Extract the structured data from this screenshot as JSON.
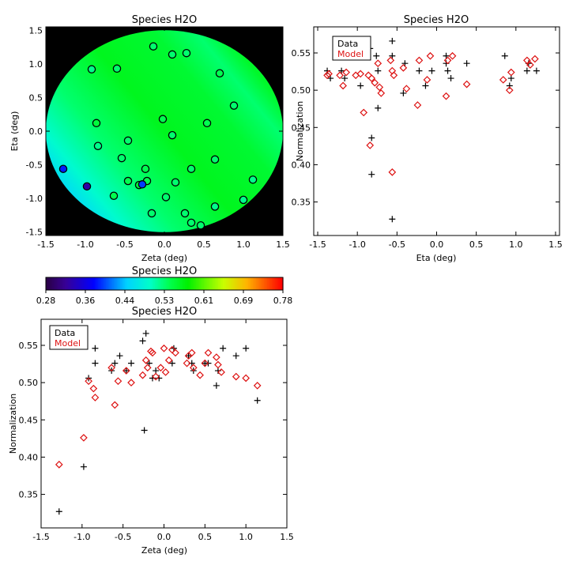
{
  "chart_data": [
    {
      "type": "map",
      "title": "Species H2O",
      "xlabel": "Zeta (deg)",
      "ylabel": "Eta (deg)",
      "xlim": [
        -1.5,
        1.5
      ],
      "ylim": [
        -1.55,
        1.55
      ],
      "xticks": [
        "-1.5",
        "-1.0",
        "-0.5",
        "0.0",
        "0.5",
        "1.0",
        "1.5"
      ],
      "yticks": [
        "-1.5",
        "-1.0",
        "-0.5",
        "0.0",
        "0.5",
        "1.0",
        "1.5"
      ],
      "colormap_range": [
        0.28,
        0.78
      ],
      "points": [
        {
          "x": -0.14,
          "y": 1.26,
          "v": 0.53
        },
        {
          "x": 0.1,
          "y": 1.14,
          "v": 0.53
        },
        {
          "x": 0.28,
          "y": 1.16,
          "v": 0.53
        },
        {
          "x": -0.92,
          "y": 0.92,
          "v": 0.52
        },
        {
          "x": -0.6,
          "y": 0.93,
          "v": 0.53
        },
        {
          "x": 0.7,
          "y": 0.86,
          "v": 0.54
        },
        {
          "x": 0.88,
          "y": 0.38,
          "v": 0.53
        },
        {
          "x": -0.02,
          "y": 0.18,
          "v": 0.54
        },
        {
          "x": 0.54,
          "y": 0.12,
          "v": 0.54
        },
        {
          "x": -0.86,
          "y": 0.12,
          "v": 0.55
        },
        {
          "x": 0.1,
          "y": -0.06,
          "v": 0.53
        },
        {
          "x": -0.46,
          "y": -0.14,
          "v": 0.53
        },
        {
          "x": -0.84,
          "y": -0.22,
          "v": 0.52
        },
        {
          "x": -0.54,
          "y": -0.4,
          "v": 0.53
        },
        {
          "x": 0.64,
          "y": -0.42,
          "v": 0.53
        },
        {
          "x": -0.24,
          "y": -0.56,
          "v": 0.54
        },
        {
          "x": 0.34,
          "y": -0.56,
          "v": 0.53
        },
        {
          "x": -1.28,
          "y": -0.56,
          "v": 0.39
        },
        {
          "x": 1.12,
          "y": -0.72,
          "v": 0.52
        },
        {
          "x": -0.46,
          "y": -0.74,
          "v": 0.54
        },
        {
          "x": -0.22,
          "y": -0.74,
          "v": 0.54
        },
        {
          "x": 0.14,
          "y": -0.76,
          "v": 0.53
        },
        {
          "x": -0.32,
          "y": -0.8,
          "v": 0.55
        },
        {
          "x": -0.28,
          "y": -0.79,
          "v": 0.4
        },
        {
          "x": -0.98,
          "y": -0.82,
          "v": 0.33
        },
        {
          "x": -0.64,
          "y": -0.96,
          "v": 0.54
        },
        {
          "x": 0.02,
          "y": -0.98,
          "v": 0.53
        },
        {
          "x": 1.0,
          "y": -1.02,
          "v": 0.52
        },
        {
          "x": 0.64,
          "y": -1.12,
          "v": 0.52
        },
        {
          "x": -0.16,
          "y": -1.22,
          "v": 0.53
        },
        {
          "x": 0.26,
          "y": -1.22,
          "v": 0.53
        },
        {
          "x": 0.34,
          "y": -1.36,
          "v": 0.53
        },
        {
          "x": 0.46,
          "y": -1.4,
          "v": 0.53
        }
      ]
    },
    {
      "type": "scatter",
      "title": "Species H2O",
      "xlabel": "Eta (deg)",
      "ylabel": "Normalization",
      "xlim": [
        -1.55,
        1.55
      ],
      "ylim": [
        0.305,
        0.585
      ],
      "xticks": [
        "-1.5",
        "-1.0",
        "-0.5",
        "0.0",
        "0.5",
        "1.0",
        "1.5"
      ],
      "yticks": [
        "0.35",
        "0.40",
        "0.45",
        "0.50",
        "0.55"
      ],
      "legend": [
        "Data",
        "Model"
      ],
      "legend_position": "top-left",
      "series": [
        {
          "name": "Data",
          "marker": "plus",
          "color": "#000000",
          "x": [
            -1.38,
            -1.34,
            -1.2,
            -1.16,
            -1.0,
            -0.96,
            -0.84,
            -0.82,
            -0.82,
            -0.76,
            -0.74,
            -0.74,
            -0.56,
            -0.56,
            -0.56,
            -0.42,
            -0.4,
            -0.22,
            -0.14,
            -0.06,
            0.12,
            0.12,
            0.14,
            0.18,
            0.38,
            0.86,
            0.92,
            0.94,
            1.14,
            1.16,
            1.26
          ],
          "y": [
            0.526,
            0.516,
            0.526,
            0.516,
            0.546,
            0.506,
            0.556,
            0.436,
            0.387,
            0.546,
            0.476,
            0.526,
            0.566,
            0.546,
            0.327,
            0.496,
            0.536,
            0.526,
            0.506,
            0.526,
            0.546,
            0.536,
            0.526,
            0.516,
            0.536,
            0.546,
            0.506,
            0.516,
            0.526,
            0.536,
            0.526
          ]
        },
        {
          "name": "Model",
          "marker": "diamond",
          "color": "#dd1111",
          "x": [
            -1.38,
            -1.36,
            -1.22,
            -1.18,
            -1.14,
            -1.02,
            -0.96,
            -0.92,
            -0.86,
            -0.84,
            -0.82,
            -0.78,
            -0.74,
            -0.72,
            -0.7,
            -0.58,
            -0.56,
            -0.56,
            -0.54,
            -0.42,
            -0.38,
            -0.24,
            -0.22,
            -0.12,
            -0.08,
            0.12,
            0.14,
            0.2,
            0.38,
            0.84,
            0.92,
            0.94,
            1.14,
            1.18,
            1.24
          ],
          "y": [
            0.52,
            0.522,
            0.52,
            0.506,
            0.524,
            0.52,
            0.522,
            0.47,
            0.52,
            0.426,
            0.516,
            0.51,
            0.536,
            0.504,
            0.496,
            0.54,
            0.526,
            0.39,
            0.52,
            0.53,
            0.502,
            0.48,
            0.54,
            0.514,
            0.546,
            0.492,
            0.54,
            0.546,
            0.508,
            0.514,
            0.5,
            0.524,
            0.54,
            0.534,
            0.542
          ]
        }
      ]
    },
    {
      "type": "colorbar",
      "title": "Species H2O",
      "range": [
        0.28,
        0.78
      ],
      "ticks": [
        "0.28",
        "0.36",
        "0.44",
        "0.53",
        "0.61",
        "0.69",
        "0.78"
      ]
    },
    {
      "type": "scatter",
      "title": "Species H2O",
      "xlabel": "Zeta (deg)",
      "ylabel": "Normalization",
      "xlim": [
        -1.5,
        1.5
      ],
      "ylim": [
        0.305,
        0.585
      ],
      "xticks": [
        "-1.5",
        "-1.0",
        "-0.5",
        "0.0",
        "0.5",
        "1.0",
        "1.5"
      ],
      "yticks": [
        "0.35",
        "0.40",
        "0.45",
        "0.50",
        "0.55"
      ],
      "legend": [
        "Data",
        "Model"
      ],
      "legend_position": "top-left",
      "series": [
        {
          "name": "Data",
          "marker": "plus",
          "color": "#000000",
          "x": [
            -1.28,
            -0.98,
            -0.92,
            -0.84,
            -0.84,
            -0.64,
            -0.6,
            -0.54,
            -0.46,
            -0.4,
            -0.26,
            -0.24,
            -0.22,
            -0.18,
            -0.14,
            -0.1,
            -0.06,
            0.1,
            0.12,
            0.3,
            0.34,
            0.36,
            0.5,
            0.54,
            0.64,
            0.66,
            0.72,
            0.88,
            1.0,
            1.14
          ],
          "y": [
            0.327,
            0.387,
            0.506,
            0.546,
            0.526,
            0.516,
            0.526,
            0.536,
            0.516,
            0.526,
            0.556,
            0.436,
            0.566,
            0.526,
            0.506,
            0.516,
            0.506,
            0.526,
            0.546,
            0.536,
            0.526,
            0.516,
            0.526,
            0.526,
            0.496,
            0.516,
            0.546,
            0.536,
            0.546,
            0.476
          ]
        },
        {
          "name": "Model",
          "marker": "diamond",
          "color": "#dd1111",
          "x": [
            -1.28,
            -0.98,
            -0.92,
            -0.86,
            -0.84,
            -0.64,
            -0.6,
            -0.56,
            -0.46,
            -0.4,
            -0.26,
            -0.22,
            -0.2,
            -0.16,
            -0.14,
            -0.1,
            -0.04,
            0.0,
            0.02,
            0.06,
            0.1,
            0.14,
            0.28,
            0.3,
            0.34,
            0.36,
            0.44,
            0.5,
            0.54,
            0.64,
            0.66,
            0.7,
            0.88,
            1.0,
            1.14
          ],
          "y": [
            0.39,
            0.426,
            0.502,
            0.492,
            0.48,
            0.52,
            0.47,
            0.502,
            0.516,
            0.5,
            0.51,
            0.53,
            0.52,
            0.542,
            0.54,
            0.508,
            0.52,
            0.546,
            0.514,
            0.53,
            0.544,
            0.54,
            0.526,
            0.536,
            0.54,
            0.52,
            0.51,
            0.526,
            0.54,
            0.534,
            0.524,
            0.514,
            0.508,
            0.506,
            0.496
          ]
        }
      ]
    }
  ]
}
